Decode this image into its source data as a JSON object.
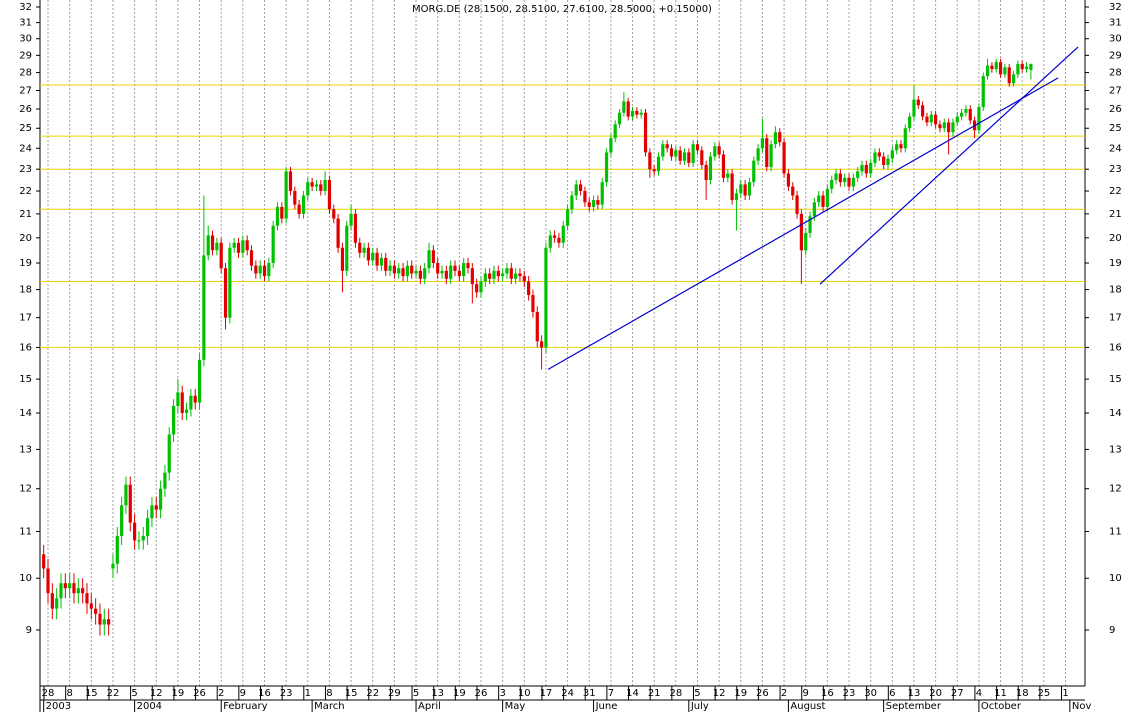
{
  "chart_data": {
    "type": "candlestick",
    "title": "MORG.DE (28.1500, 28.5100, 27.6100, 28.5000, +0.15000)",
    "log_y": true,
    "grid_x": true,
    "up_color": "#00c000",
    "down_color": "#e00000",
    "ylim": [
      8.03,
      32.46
    ],
    "yticks": [
      9,
      10,
      11,
      12,
      13,
      14,
      15,
      16,
      17,
      18,
      19,
      20,
      21,
      22,
      23,
      24,
      25,
      26,
      27,
      28,
      29,
      30,
      31,
      32
    ],
    "xlim": [
      -0.85,
      240.5
    ],
    "xticks": [
      {
        "value": 1,
        "label": "28"
      },
      {
        "value": 6,
        "label": "8"
      },
      {
        "value": 11,
        "label": "15"
      },
      {
        "value": 16,
        "label": "22"
      },
      {
        "value": 21,
        "label": "5"
      },
      {
        "value": 26,
        "label": "12"
      },
      {
        "value": 31,
        "label": "19"
      },
      {
        "value": 36,
        "label": "26"
      },
      {
        "value": 41,
        "label": "2"
      },
      {
        "value": 46,
        "label": "9"
      },
      {
        "value": 51,
        "label": "16"
      },
      {
        "value": 56,
        "label": "23"
      },
      {
        "value": 61,
        "label": "1"
      },
      {
        "value": 66,
        "label": "8"
      },
      {
        "value": 71,
        "label": "15"
      },
      {
        "value": 76,
        "label": "22"
      },
      {
        "value": 81,
        "label": "29"
      },
      {
        "value": 86,
        "label": "5"
      },
      {
        "value": 91,
        "label": "13"
      },
      {
        "value": 96,
        "label": "19"
      },
      {
        "value": 101,
        "label": "26"
      },
      {
        "value": 106,
        "label": "3"
      },
      {
        "value": 111,
        "label": "10"
      },
      {
        "value": 116,
        "label": "17"
      },
      {
        "value": 121,
        "label": "24"
      },
      {
        "value": 126,
        "label": "31"
      },
      {
        "value": 131,
        "label": "7"
      },
      {
        "value": 136,
        "label": "14"
      },
      {
        "value": 141,
        "label": "21"
      },
      {
        "value": 146,
        "label": "28"
      },
      {
        "value": 151,
        "label": "5"
      },
      {
        "value": 156,
        "label": "12"
      },
      {
        "value": 161,
        "label": "19"
      },
      {
        "value": 166,
        "label": "26"
      },
      {
        "value": 171,
        "label": "2"
      },
      {
        "value": 176,
        "label": "9"
      },
      {
        "value": 181,
        "label": "16"
      },
      {
        "value": 186,
        "label": "23"
      },
      {
        "value": 191,
        "label": "30"
      },
      {
        "value": 196,
        "label": "6"
      },
      {
        "value": 201,
        "label": "13"
      },
      {
        "value": 206,
        "label": "20"
      },
      {
        "value": 211,
        "label": "27"
      },
      {
        "value": 216,
        "label": "4"
      },
      {
        "value": 221,
        "label": "11"
      },
      {
        "value": 226,
        "label": "18"
      },
      {
        "value": 231,
        "label": "25"
      },
      {
        "value": 236,
        "label": "1"
      }
    ],
    "months": [
      {
        "value": 0,
        "label": "2003"
      },
      {
        "value": 21,
        "label": "2004"
      },
      {
        "value": 41,
        "label": "February"
      },
      {
        "value": 62,
        "label": "March"
      },
      {
        "value": 86,
        "label": "April"
      },
      {
        "value": 106,
        "label": "May"
      },
      {
        "value": 127,
        "label": "June"
      },
      {
        "value": 149,
        "label": "July"
      },
      {
        "value": 172,
        "label": "August"
      },
      {
        "value": 194,
        "label": "September"
      },
      {
        "value": 216,
        "label": "October"
      },
      {
        "value": 237,
        "label": "Nov"
      }
    ],
    "levels": {
      "color": "#e8d400",
      "values": [
        27.3,
        24.6,
        23.0,
        21.2,
        18.3,
        16.0
      ]
    },
    "trendlines": [
      {
        "color": "#0000d0",
        "x": [
          116.5,
          234.3
        ],
        "y": [
          15.3,
          27.7
        ]
      },
      {
        "color": "#0000d0",
        "x": [
          179.3,
          238.9
        ],
        "y": [
          18.2,
          29.5
        ]
      }
    ],
    "open": [
      10.5,
      10.2,
      9.7,
      9.4,
      9.6,
      9.9,
      9.8,
      9.9,
      9.7,
      9.8,
      9.7,
      9.5,
      9.4,
      9.3,
      9.1,
      9.2,
      10.2,
      10.3,
      10.9,
      11.6,
      12.1,
      11.2,
      10.8,
      10.8,
      10.9,
      11.3,
      11.6,
      11.5,
      12.0,
      12.4,
      13.4,
      14.2,
      14.6,
      14.0,
      14.1,
      14.5,
      14.3,
      15.6,
      19.3,
      20.1,
      19.5,
      19.8,
      18.8,
      17.0,
      19.6,
      19.8,
      19.4,
      19.9,
      19.5,
      18.9,
      18.6,
      18.9,
      18.5,
      19.0,
      20.5,
      21.3,
      20.8,
      22.9,
      22.0,
      21.4,
      21.0,
      21.8,
      22.4,
      22.2,
      22.3,
      22.0,
      22.5,
      21.2,
      20.8,
      19.6,
      18.7,
      20.5,
      21.0,
      19.8,
      19.4,
      19.6,
      19.1,
      19.4,
      18.9,
      19.2,
      18.7,
      18.9,
      18.6,
      18.8,
      18.5,
      18.9,
      18.6,
      18.7,
      18.4,
      18.8,
      19.5,
      19.0,
      18.6,
      18.7,
      18.4,
      18.9,
      18.7,
      18.5,
      19.0,
      18.8,
      18.2,
      17.9,
      18.3,
      18.6,
      18.4,
      18.7,
      18.5,
      18.6,
      18.8,
      18.4,
      18.6,
      18.5,
      18.3,
      17.8,
      17.2,
      16.2,
      16.0,
      19.6,
      20.1,
      20.0,
      19.8,
      20.5,
      21.2,
      21.8,
      22.3,
      22.0,
      21.5,
      21.3,
      21.6,
      21.4,
      22.4,
      23.8,
      24.5,
      25.2,
      25.8,
      26.4,
      25.6,
      25.9,
      25.7,
      25.8,
      23.8,
      23.0,
      22.9,
      23.6,
      24.2,
      24.0,
      23.6,
      23.9,
      23.4,
      23.8,
      23.3,
      24.2,
      23.9,
      23.2,
      22.5,
      23.6,
      24.1,
      23.7,
      22.6,
      22.8,
      21.6,
      21.9,
      22.3,
      21.8,
      22.4,
      23.4,
      24.0,
      24.5,
      23.1,
      24.2,
      24.8,
      24.3,
      22.8,
      22.2,
      21.8,
      21.0,
      19.5,
      20.2,
      20.9,
      21.5,
      21.8,
      21.3,
      22.1,
      22.5,
      22.8,
      22.4,
      22.6,
      22.2,
      22.6,
      22.9,
      23.2,
      22.8,
      23.3,
      23.8,
      23.6,
      23.2,
      23.5,
      23.9,
      24.2,
      24.0,
      25.0,
      25.6,
      26.5,
      26.2,
      25.6,
      25.3,
      25.7,
      25.2,
      25.0,
      25.3,
      24.8,
      25.3,
      25.6,
      25.8,
      26.0,
      25.4,
      24.9,
      26.1,
      27.8,
      28.4,
      28.2,
      28.6,
      27.9,
      28.3,
      27.4,
      27.9,
      28.5,
      28.2,
      28.15
    ],
    "high": [
      10.7,
      10.4,
      9.9,
      9.8,
      10.1,
      10.1,
      10.1,
      10.1,
      10.0,
      10.0,
      9.9,
      9.7,
      9.6,
      9.5,
      9.4,
      9.4,
      10.5,
      11.1,
      11.8,
      12.3,
      12.3,
      11.4,
      11.0,
      11.1,
      11.5,
      11.8,
      11.8,
      12.2,
      12.6,
      13.6,
      14.4,
      15.0,
      14.8,
      14.3,
      14.7,
      14.7,
      15.8,
      21.8,
      20.5,
      20.3,
      20.0,
      20.0,
      19.0,
      19.8,
      20.0,
      20.0,
      20.1,
      20.1,
      19.7,
      19.1,
      19.1,
      19.1,
      19.2,
      20.7,
      21.5,
      21.5,
      23.1,
      23.1,
      22.2,
      21.6,
      22.0,
      22.6,
      22.6,
      22.5,
      22.5,
      22.9,
      22.7,
      21.4,
      21.0,
      19.8,
      20.7,
      21.4,
      21.2,
      20.0,
      19.8,
      19.8,
      19.6,
      19.6,
      19.4,
      19.4,
      19.1,
      19.1,
      19.0,
      19.0,
      19.1,
      19.1,
      18.9,
      18.9,
      19.0,
      19.8,
      19.7,
      19.2,
      18.9,
      18.9,
      19.1,
      19.1,
      18.9,
      19.2,
      19.2,
      19.0,
      18.4,
      18.5,
      18.8,
      18.8,
      18.9,
      18.9,
      18.8,
      19.0,
      19.0,
      18.8,
      18.8,
      18.7,
      18.5,
      18.0,
      17.4,
      16.4,
      19.8,
      20.3,
      20.3,
      20.2,
      20.7,
      21.4,
      22.0,
      22.5,
      22.5,
      22.2,
      21.7,
      21.8,
      21.8,
      22.6,
      24.0,
      24.7,
      25.4,
      26.0,
      26.9,
      26.6,
      26.1,
      26.1,
      26.0,
      26.0,
      24.0,
      23.2,
      23.8,
      24.4,
      24.4,
      24.2,
      24.1,
      24.1,
      24.0,
      24.0,
      24.4,
      24.4,
      24.1,
      23.4,
      23.8,
      24.3,
      24.3,
      23.9,
      23.0,
      23.0,
      22.1,
      22.5,
      22.5,
      22.6,
      23.6,
      24.2,
      25.5,
      24.7,
      24.4,
      25.1,
      25.0,
      24.5,
      23.0,
      22.4,
      22.0,
      21.2,
      20.4,
      21.1,
      21.7,
      22.0,
      22.0,
      22.3,
      22.7,
      23.0,
      23.0,
      22.8,
      22.8,
      22.8,
      23.1,
      23.4,
      23.4,
      23.5,
      24.0,
      24.0,
      23.8,
      23.7,
      24.1,
      24.4,
      24.4,
      25.2,
      25.8,
      27.3,
      26.7,
      26.4,
      25.8,
      25.9,
      25.9,
      25.4,
      25.5,
      25.5,
      25.5,
      25.8,
      26.0,
      26.2,
      26.2,
      25.6,
      26.3,
      28.0,
      28.8,
      28.6,
      28.8,
      28.8,
      28.5,
      28.5,
      28.1,
      28.7,
      28.7,
      28.6,
      28.51
    ],
    "low": [
      10.0,
      9.5,
      9.2,
      9.2,
      9.4,
      9.6,
      9.6,
      9.5,
      9.5,
      9.5,
      9.3,
      9.2,
      9.1,
      8.9,
      8.9,
      8.9,
      10.0,
      10.1,
      10.7,
      11.4,
      11.0,
      10.6,
      10.6,
      10.6,
      10.7,
      11.1,
      11.3,
      11.3,
      11.8,
      12.2,
      13.2,
      14.0,
      13.8,
      13.8,
      13.9,
      14.1,
      14.1,
      15.4,
      19.1,
      19.3,
      19.3,
      18.6,
      16.6,
      16.8,
      19.4,
      19.2,
      19.2,
      19.3,
      18.7,
      18.4,
      18.4,
      18.3,
      18.3,
      18.8,
      20.3,
      20.6,
      20.6,
      21.8,
      21.2,
      20.8,
      20.8,
      21.6,
      22.0,
      22.0,
      21.8,
      21.8,
      21.0,
      20.6,
      19.4,
      17.9,
      18.5,
      20.3,
      19.6,
      19.2,
      19.2,
      18.9,
      18.9,
      18.7,
      18.7,
      18.5,
      18.5,
      18.4,
      18.4,
      18.3,
      18.3,
      18.4,
      18.4,
      18.2,
      18.2,
      18.6,
      18.8,
      18.4,
      18.4,
      18.2,
      18.2,
      18.5,
      18.3,
      18.3,
      18.6,
      17.5,
      17.7,
      17.7,
      18.1,
      18.2,
      18.2,
      18.3,
      18.3,
      18.4,
      18.2,
      18.2,
      18.3,
      18.1,
      17.6,
      17.0,
      16.0,
      15.3,
      15.8,
      19.4,
      19.8,
      19.6,
      19.6,
      20.3,
      21.0,
      21.6,
      21.8,
      21.3,
      21.1,
      21.1,
      21.2,
      21.2,
      22.2,
      23.6,
      24.3,
      25.0,
      25.6,
      25.4,
      25.4,
      25.5,
      25.5,
      23.6,
      22.6,
      22.7,
      22.7,
      23.4,
      23.8,
      23.4,
      23.4,
      23.2,
      23.2,
      23.1,
      23.1,
      23.7,
      23.0,
      21.6,
      22.3,
      23.4,
      23.5,
      22.4,
      22.4,
      21.4,
      20.3,
      21.7,
      21.6,
      21.6,
      22.2,
      23.2,
      23.8,
      22.9,
      22.9,
      24.0,
      24.1,
      22.6,
      22.0,
      21.6,
      20.8,
      18.2,
      19.3,
      20.0,
      20.7,
      21.3,
      21.1,
      21.1,
      21.9,
      22.3,
      22.2,
      22.2,
      22.0,
      22.0,
      22.4,
      22.7,
      22.6,
      22.6,
      23.1,
      23.4,
      23.0,
      23.0,
      23.3,
      23.7,
      23.8,
      23.8,
      24.8,
      25.4,
      26.0,
      25.4,
      25.1,
      25.1,
      25.0,
      24.8,
      24.8,
      23.7,
      24.6,
      25.1,
      25.4,
      25.6,
      25.2,
      24.5,
      24.7,
      25.9,
      27.6,
      28.0,
      28.0,
      27.7,
      27.7,
      27.2,
      27.2,
      27.7,
      28.0,
      28.0,
      27.61
    ],
    "close": [
      10.2,
      9.7,
      9.4,
      9.6,
      9.9,
      9.8,
      9.9,
      9.7,
      9.8,
      9.7,
      9.5,
      9.4,
      9.3,
      9.1,
      9.2,
      9.1,
      10.3,
      10.9,
      11.6,
      12.1,
      11.2,
      10.8,
      10.8,
      10.9,
      11.3,
      11.6,
      11.5,
      12.0,
      12.4,
      13.4,
      14.2,
      14.6,
      14.0,
      14.1,
      14.5,
      14.3,
      15.6,
      19.3,
      20.1,
      19.5,
      19.8,
      18.8,
      17.0,
      19.6,
      19.8,
      19.4,
      19.9,
      19.5,
      18.9,
      18.6,
      18.9,
      18.5,
      19.0,
      20.5,
      21.3,
      20.8,
      22.9,
      22.0,
      21.4,
      21.0,
      21.8,
      22.4,
      22.2,
      22.3,
      22.0,
      22.5,
      21.2,
      20.8,
      19.6,
      18.7,
      20.5,
      21.0,
      19.8,
      19.4,
      19.6,
      19.1,
      19.4,
      18.9,
      19.2,
      18.7,
      18.9,
      18.6,
      18.8,
      18.5,
      18.9,
      18.6,
      18.7,
      18.4,
      18.8,
      19.5,
      19.0,
      18.6,
      18.7,
      18.4,
      18.9,
      18.7,
      18.5,
      19.0,
      18.8,
      18.2,
      17.9,
      18.3,
      18.6,
      18.4,
      18.7,
      18.5,
      18.6,
      18.8,
      18.4,
      18.6,
      18.5,
      18.3,
      17.8,
      17.2,
      16.2,
      16.0,
      19.6,
      20.1,
      20.0,
      19.8,
      20.5,
      21.2,
      21.8,
      22.3,
      22.0,
      21.5,
      21.3,
      21.6,
      21.4,
      22.4,
      23.8,
      24.5,
      25.2,
      25.8,
      26.4,
      25.6,
      25.9,
      25.7,
      25.8,
      23.8,
      23.0,
      22.9,
      23.6,
      24.2,
      24.0,
      23.6,
      23.9,
      23.4,
      23.8,
      23.3,
      24.2,
      23.9,
      23.2,
      22.5,
      23.6,
      24.1,
      23.7,
      22.6,
      22.8,
      21.6,
      21.9,
      22.3,
      21.8,
      22.4,
      23.4,
      24.0,
      24.5,
      23.1,
      24.2,
      24.8,
      24.3,
      22.8,
      22.2,
      21.8,
      21.0,
      19.5,
      20.2,
      20.9,
      21.5,
      21.8,
      21.3,
      22.1,
      22.5,
      22.8,
      22.4,
      22.6,
      22.2,
      22.6,
      22.9,
      23.2,
      22.8,
      23.3,
      23.8,
      23.6,
      23.2,
      23.5,
      23.9,
      24.2,
      24.0,
      25.0,
      25.6,
      26.5,
      26.2,
      25.6,
      25.3,
      25.7,
      25.2,
      25.0,
      25.3,
      24.8,
      25.3,
      25.6,
      25.8,
      26.0,
      25.4,
      24.9,
      26.1,
      27.8,
      28.4,
      28.2,
      28.6,
      27.9,
      28.3,
      27.4,
      27.9,
      28.5,
      28.2,
      28.35,
      28.5
    ]
  }
}
